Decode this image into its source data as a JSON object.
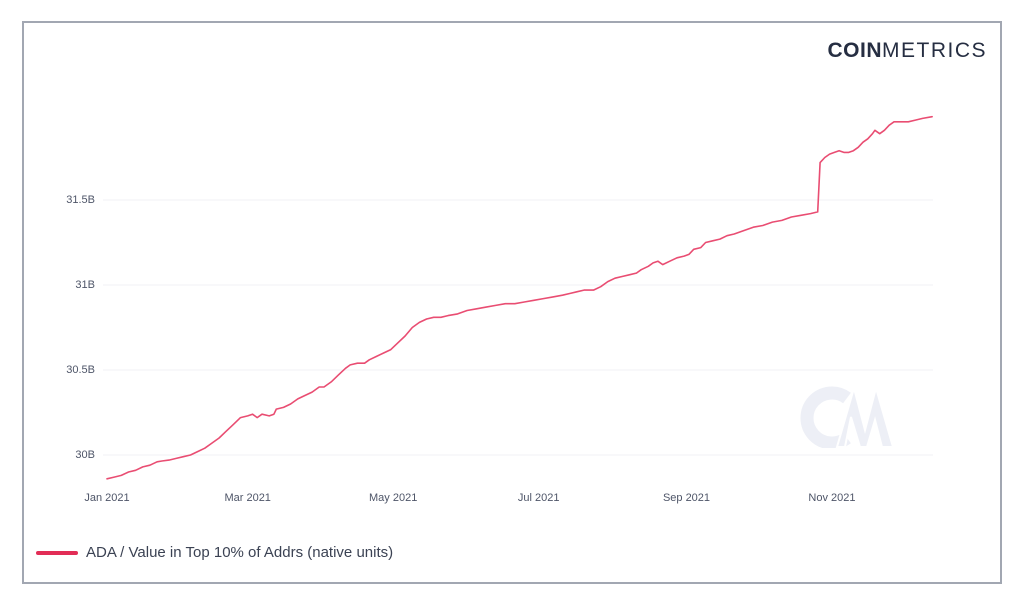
{
  "page": {
    "brand": {
      "bold": "COIN",
      "light": "METRICS"
    },
    "watermark": "CM"
  },
  "colors": {
    "line": "#e94d72",
    "swatch": "#e22d56",
    "grid": "#f1f2f6",
    "axis_text": "#4e5568",
    "legend_text": "#3b4253",
    "logo": "#262e42",
    "watermark": "#edeff6",
    "border": "#a2a7b2"
  },
  "legend": {
    "items": [
      {
        "label": "ADA / Value in Top 10% of Addrs (native units)",
        "color": "#e22d56"
      }
    ]
  },
  "chart_data": {
    "type": "line",
    "title": "",
    "xlabel": "",
    "ylabel": "",
    "grid": "horizontal",
    "legend_position": "bottom-left",
    "unit": "native units (billions, B suffix)",
    "y_axis": {
      "range": [
        29.8,
        32.05
      ],
      "ticks": [
        {
          "value": 30,
          "label": "30B"
        },
        {
          "value": 30.5,
          "label": "30.5B"
        },
        {
          "value": 31,
          "label": "31B"
        },
        {
          "value": 31.5,
          "label": "31.5B"
        }
      ]
    },
    "x_axis": {
      "range": [
        "2021-01-01",
        "2021-12-13"
      ],
      "ticks": [
        {
          "date": "2021-01-01",
          "label": "Jan 2021"
        },
        {
          "date": "2021-03-01",
          "label": "Mar 2021"
        },
        {
          "date": "2021-05-01",
          "label": "May 2021"
        },
        {
          "date": "2021-07-01",
          "label": "Jul 2021"
        },
        {
          "date": "2021-09-01",
          "label": "Sep 2021"
        },
        {
          "date": "2021-11-01",
          "label": "Nov 2021"
        }
      ]
    },
    "series": [
      {
        "name": "ADA / Value in Top 10% of Addrs (native units)",
        "color": "#e94d72",
        "points": [
          [
            "2021-01-01",
            29.86
          ],
          [
            "2021-01-04",
            29.87
          ],
          [
            "2021-01-07",
            29.88
          ],
          [
            "2021-01-10",
            29.9
          ],
          [
            "2021-01-13",
            29.91
          ],
          [
            "2021-01-16",
            29.93
          ],
          [
            "2021-01-19",
            29.94
          ],
          [
            "2021-01-22",
            29.96
          ],
          [
            "2021-01-24",
            29.965
          ],
          [
            "2021-01-27",
            29.97
          ],
          [
            "2021-01-30",
            29.98
          ],
          [
            "2021-02-02",
            29.99
          ],
          [
            "2021-02-05",
            30.0
          ],
          [
            "2021-02-08",
            30.02
          ],
          [
            "2021-02-11",
            30.04
          ],
          [
            "2021-02-14",
            30.07
          ],
          [
            "2021-02-17",
            30.1
          ],
          [
            "2021-02-20",
            30.14
          ],
          [
            "2021-02-23",
            30.18
          ],
          [
            "2021-02-26",
            30.22
          ],
          [
            "2021-03-01",
            30.23
          ],
          [
            "2021-03-03",
            30.24
          ],
          [
            "2021-03-05",
            30.22
          ],
          [
            "2021-03-07",
            30.24
          ],
          [
            "2021-03-10",
            30.23
          ],
          [
            "2021-03-12",
            30.24
          ],
          [
            "2021-03-13",
            30.27
          ],
          [
            "2021-03-16",
            30.28
          ],
          [
            "2021-03-19",
            30.3
          ],
          [
            "2021-03-22",
            30.33
          ],
          [
            "2021-03-25",
            30.35
          ],
          [
            "2021-03-28",
            30.37
          ],
          [
            "2021-03-31",
            30.4
          ],
          [
            "2021-04-02",
            30.4
          ],
          [
            "2021-04-05",
            30.43
          ],
          [
            "2021-04-08",
            30.47
          ],
          [
            "2021-04-11",
            30.51
          ],
          [
            "2021-04-13",
            30.53
          ],
          [
            "2021-04-16",
            30.54
          ],
          [
            "2021-04-19",
            30.54
          ],
          [
            "2021-04-21",
            30.56
          ],
          [
            "2021-04-24",
            30.58
          ],
          [
            "2021-04-27",
            30.6
          ],
          [
            "2021-04-30",
            30.62
          ],
          [
            "2021-05-03",
            30.66
          ],
          [
            "2021-05-06",
            30.7
          ],
          [
            "2021-05-09",
            30.75
          ],
          [
            "2021-05-12",
            30.78
          ],
          [
            "2021-05-15",
            30.8
          ],
          [
            "2021-05-18",
            30.81
          ],
          [
            "2021-05-21",
            30.81
          ],
          [
            "2021-05-24",
            30.82
          ],
          [
            "2021-05-28",
            30.83
          ],
          [
            "2021-06-01",
            30.85
          ],
          [
            "2021-06-05",
            30.86
          ],
          [
            "2021-06-09",
            30.87
          ],
          [
            "2021-06-13",
            30.88
          ],
          [
            "2021-06-17",
            30.89
          ],
          [
            "2021-06-21",
            30.89
          ],
          [
            "2021-06-25",
            30.9
          ],
          [
            "2021-06-29",
            30.91
          ],
          [
            "2021-07-03",
            30.92
          ],
          [
            "2021-07-07",
            30.93
          ],
          [
            "2021-07-11",
            30.94
          ],
          [
            "2021-07-14",
            30.95
          ],
          [
            "2021-07-17",
            30.96
          ],
          [
            "2021-07-20",
            30.97
          ],
          [
            "2021-07-24",
            30.97
          ],
          [
            "2021-07-27",
            30.99
          ],
          [
            "2021-07-30",
            31.02
          ],
          [
            "2021-08-02",
            31.04
          ],
          [
            "2021-08-05",
            31.05
          ],
          [
            "2021-08-08",
            31.06
          ],
          [
            "2021-08-11",
            31.07
          ],
          [
            "2021-08-13",
            31.09
          ],
          [
            "2021-08-16",
            31.11
          ],
          [
            "2021-08-18",
            31.13
          ],
          [
            "2021-08-20",
            31.14
          ],
          [
            "2021-08-22",
            31.12
          ],
          [
            "2021-08-25",
            31.14
          ],
          [
            "2021-08-28",
            31.16
          ],
          [
            "2021-08-31",
            31.17
          ],
          [
            "2021-09-02",
            31.18
          ],
          [
            "2021-09-04",
            31.21
          ],
          [
            "2021-09-07",
            31.22
          ],
          [
            "2021-09-09",
            31.25
          ],
          [
            "2021-09-12",
            31.26
          ],
          [
            "2021-09-15",
            31.27
          ],
          [
            "2021-09-18",
            31.29
          ],
          [
            "2021-09-21",
            31.3
          ],
          [
            "2021-09-25",
            31.32
          ],
          [
            "2021-09-29",
            31.34
          ],
          [
            "2021-10-03",
            31.35
          ],
          [
            "2021-10-07",
            31.37
          ],
          [
            "2021-10-11",
            31.38
          ],
          [
            "2021-10-15",
            31.4
          ],
          [
            "2021-10-19",
            31.41
          ],
          [
            "2021-10-23",
            31.42
          ],
          [
            "2021-10-26",
            31.43
          ],
          [
            "2021-10-27",
            31.72
          ],
          [
            "2021-10-29",
            31.75
          ],
          [
            "2021-10-31",
            31.77
          ],
          [
            "2021-11-02",
            31.78
          ],
          [
            "2021-11-04",
            31.79
          ],
          [
            "2021-11-06",
            31.78
          ],
          [
            "2021-11-08",
            31.78
          ],
          [
            "2021-11-10",
            31.79
          ],
          [
            "2021-11-12",
            31.81
          ],
          [
            "2021-11-14",
            31.84
          ],
          [
            "2021-11-16",
            31.86
          ],
          [
            "2021-11-18",
            31.89
          ],
          [
            "2021-11-19",
            31.91
          ],
          [
            "2021-11-21",
            31.89
          ],
          [
            "2021-11-23",
            31.91
          ],
          [
            "2021-11-25",
            31.94
          ],
          [
            "2021-11-27",
            31.96
          ],
          [
            "2021-11-30",
            31.96
          ],
          [
            "2021-12-03",
            31.96
          ],
          [
            "2021-12-06",
            31.97
          ],
          [
            "2021-12-09",
            31.98
          ],
          [
            "2021-12-13",
            31.99
          ]
        ]
      }
    ]
  }
}
